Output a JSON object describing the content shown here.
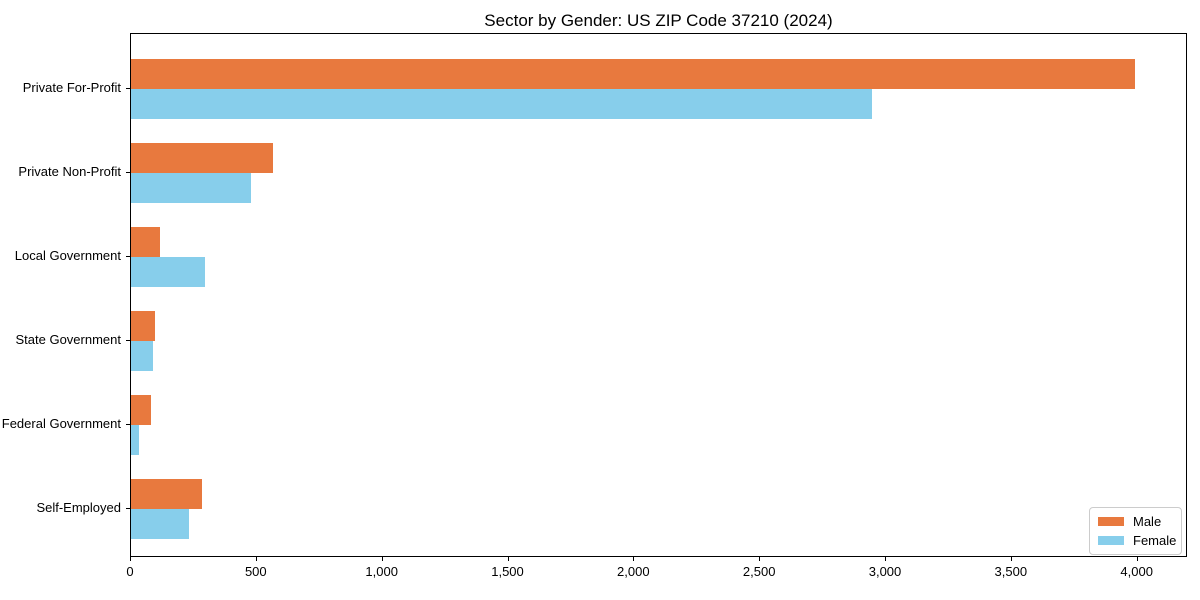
{
  "chart_data": {
    "type": "bar",
    "orientation": "horizontal",
    "title": "Sector by Gender: US ZIP Code 37210 (2024)",
    "xlabel": "",
    "ylabel": "",
    "grid": false,
    "categories": [
      "Private For-Profit",
      "Private Non-Profit",
      "Local Government",
      "State Government",
      "Federal Government",
      "Self-Employed"
    ],
    "series": [
      {
        "name": "Male",
        "color": "#e8793e",
        "values": [
          3990,
          565,
          115,
          95,
          80,
          280
        ]
      },
      {
        "name": "Female",
        "color": "#87ceeb",
        "values": [
          2945,
          475,
          295,
          87,
          30,
          230
        ]
      }
    ],
    "xlim": [
      0,
      4200
    ],
    "x_ticks": [
      {
        "value": 0,
        "label": "0"
      },
      {
        "value": 500,
        "label": "500"
      },
      {
        "value": 1000,
        "label": "1,000"
      },
      {
        "value": 1500,
        "label": "1,500"
      },
      {
        "value": 2000,
        "label": "2,000"
      },
      {
        "value": 2500,
        "label": "2,500"
      },
      {
        "value": 3000,
        "label": "3,000"
      },
      {
        "value": 3500,
        "label": "3,500"
      },
      {
        "value": 4000,
        "label": "4,000"
      }
    ],
    "legend": {
      "position": "lower right",
      "entries": [
        "Male",
        "Female"
      ]
    }
  },
  "colors": {
    "background": "#ffffff",
    "spine": "#000000",
    "text": "#000000",
    "legend_border": "#cccccc",
    "male": "#e8793e",
    "female": "#87ceeb"
  }
}
